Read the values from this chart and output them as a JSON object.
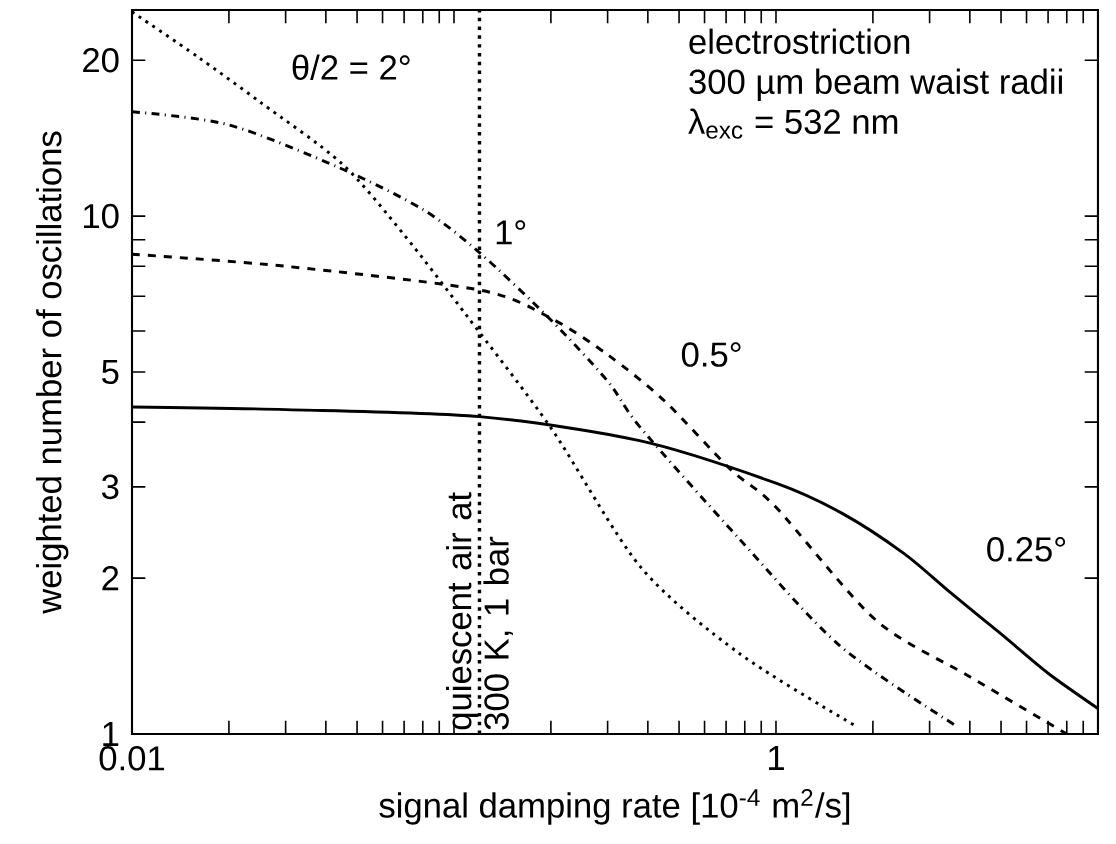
{
  "chart_data": {
    "type": "line",
    "xlabel": "signal damping rate [10$^{-4}$ m$^{2}$/s]",
    "ylabel": "weighted number of oscillations",
    "log": "xy",
    "grid": false,
    "marker": "none",
    "xlim": [
      0.01,
      10
    ],
    "ylim": [
      1,
      25
    ],
    "xticks": [
      0.01,
      {
        "value": 0.02,
        "label": null
      },
      {
        "value": 0.03,
        "label": null
      },
      {
        "value": 0.04,
        "label": null
      },
      {
        "value": 0.05,
        "label": null
      },
      {
        "value": 0.06,
        "label": null
      },
      {
        "value": 0.07,
        "label": null
      },
      {
        "value": 0.08,
        "label": null
      },
      {
        "value": 0.09,
        "label": null
      },
      {
        "value": 0.1,
        "label": null
      },
      {
        "value": 0.2,
        "label": null
      },
      {
        "value": 0.3,
        "label": null
      },
      {
        "value": 0.4,
        "label": null
      },
      {
        "value": 0.5,
        "label": null
      },
      {
        "value": 0.6,
        "label": null
      },
      {
        "value": 0.7,
        "label": null
      },
      {
        "value": 0.8,
        "label": null
      },
      {
        "value": 0.9,
        "label": null
      },
      1,
      {
        "value": 2,
        "label": null
      },
      {
        "value": 3,
        "label": null
      },
      {
        "value": 4,
        "label": null
      },
      {
        "value": 5,
        "label": null
      },
      {
        "value": 6,
        "label": null
      },
      {
        "value": 7,
        "label": null
      },
      {
        "value": 8,
        "label": null
      },
      {
        "value": 9,
        "label": null
      },
      {
        "value": 10,
        "label": null
      }
    ],
    "yticks": [
      1,
      2,
      3,
      {
        "value": 4,
        "label": null
      },
      5,
      {
        "value": 6,
        "label": null
      },
      {
        "value": 7,
        "label": null
      },
      {
        "value": 8,
        "label": null
      },
      {
        "value": 9,
        "label": null
      },
      10,
      20
    ],
    "series": [
      {
        "color": "#000000",
        "line_style": "dotted",
        "x": [
          0.01,
          0.016,
          0.025,
          0.045,
          0.07,
          0.11,
          0.2,
          0.38,
          0.77,
          1.75
        ],
        "values": [
          24.8,
          20.3,
          16.6,
          12.6,
          9.2,
          6.4,
          3.9,
          2.1,
          1.43,
          1.04
        ]
      },
      {
        "color": "#000000",
        "line_style": "dashdot",
        "x": [
          0.01,
          0.02,
          0.044,
          0.08,
          0.12,
          0.2,
          0.3,
          0.38,
          0.77,
          1.58,
          3.6
        ],
        "values": [
          15.9,
          15.0,
          12.4,
          10.3,
          8.5,
          6.3,
          4.8,
          3.9,
          2.38,
          1.48,
          1.04
        ]
      },
      {
        "color": "#000000",
        "line_style": "dashed",
        "x": [
          0.01,
          0.03,
          0.12,
          0.2,
          0.3,
          0.45,
          0.72,
          1.0,
          2.04,
          4.0,
          8.0
        ],
        "values": [
          8.44,
          8.0,
          7.2,
          6.35,
          5.4,
          4.4,
          3.25,
          2.74,
          1.66,
          1.29,
          1.0
        ]
      },
      {
        "color": "#000000",
        "line_style": "solid",
        "x": [
          0.01,
          0.03,
          0.12,
          0.38,
          1.0,
          1.6,
          2.5,
          3.5,
          5.0,
          7.0,
          10.0
        ],
        "values": [
          4.28,
          4.23,
          4.1,
          3.68,
          3.05,
          2.67,
          2.23,
          1.87,
          1.56,
          1.31,
          1.12
        ]
      }
    ],
    "ref_lines": [
      {
        "axis": "x",
        "value": 0.12,
        "label": "quiescent air at 300 K, 1 bar",
        "line_style": "dotted",
        "color": "#000000"
      }
    ],
    "annotations": [
      "electrostriction",
      "300 µm beam waist radii",
      "λ$_{exc}$ = 532 nm",
      "θ/2 = 2°",
      "1°",
      "0.5°",
      "0.25°"
    ]
  }
}
